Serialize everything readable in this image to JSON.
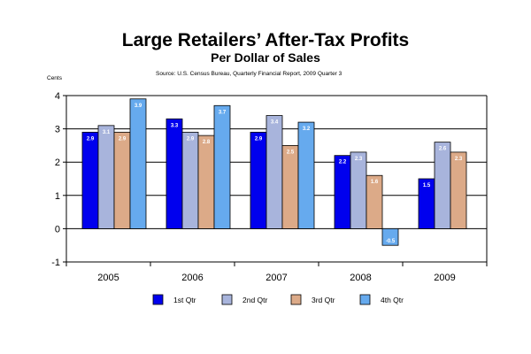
{
  "chart_data": {
    "type": "bar",
    "title": "Large Retailers’ After-Tax Profits",
    "subtitle": "Per Dollar of Sales",
    "source": "Source:     U.S. Census Bureau, Quarterly Financial Report, 2009 Quarter 3",
    "ylabel": "Cents",
    "xlabel": "",
    "ylim": [
      -1,
      4
    ],
    "yticks": [
      -1,
      0,
      1,
      2,
      3,
      4
    ],
    "ytick_labels": [
      "-1",
      "0",
      "1",
      "2",
      "3",
      "4"
    ],
    "grid": true,
    "legend_position": "bottom",
    "categories": [
      "2005",
      "2006",
      "2007",
      "2008",
      "2009"
    ],
    "series": [
      {
        "name": "1st Qtr",
        "color": "#0000ee",
        "values": [
          2.9,
          3.3,
          2.9,
          2.2,
          1.5
        ],
        "labels": [
          "2.9",
          "3.3",
          "2.9",
          "2.2",
          "1.5"
        ]
      },
      {
        "name": "2nd Qtr",
        "color": "#a8b4dc",
        "values": [
          3.1,
          2.9,
          3.4,
          2.3,
          2.6
        ],
        "labels": [
          "3.1",
          "2.9",
          "3.4",
          "2.3",
          "2.6"
        ]
      },
      {
        "name": "3rd Qtr",
        "color": "#dcaa88",
        "values": [
          2.9,
          2.8,
          2.5,
          1.6,
          2.3
        ],
        "labels": [
          "2.9",
          "2.8",
          "2.5",
          "1.6",
          "2.3"
        ]
      },
      {
        "name": "4th Qtr",
        "color": "#66aaee",
        "values": [
          3.9,
          3.7,
          3.2,
          -0.5,
          null
        ],
        "labels": [
          "3.9",
          "3.7",
          "3.2",
          "-0.5",
          null
        ]
      }
    ]
  }
}
